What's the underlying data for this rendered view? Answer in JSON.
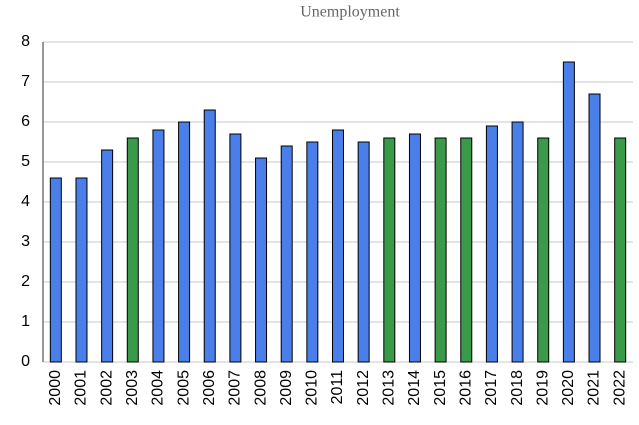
{
  "chart_data": {
    "type": "bar",
    "title": "Unemployment",
    "categories": [
      "2000",
      "2001",
      "2002",
      "2003",
      "2004",
      "2005",
      "2006",
      "2007",
      "2008",
      "2009",
      "2010",
      "2011",
      "2012",
      "2013",
      "2014",
      "2015",
      "2016",
      "2017",
      "2018",
      "2019",
      "2020",
      "2021",
      "2022"
    ],
    "values": [
      4.6,
      4.6,
      5.3,
      5.6,
      5.8,
      6.0,
      6.3,
      5.7,
      5.1,
      5.4,
      5.5,
      5.8,
      5.5,
      5.6,
      5.7,
      5.6,
      5.6,
      5.9,
      6.0,
      5.6,
      7.5,
      6.7,
      5.6
    ],
    "colors": [
      "#4a7fea",
      "#4a7fea",
      "#4a7fea",
      "#3a9a4a",
      "#4a7fea",
      "#4a7fea",
      "#4a7fea",
      "#4a7fea",
      "#4a7fea",
      "#4a7fea",
      "#4a7fea",
      "#4a7fea",
      "#4a7fea",
      "#3a9a4a",
      "#4a7fea",
      "#3a9a4a",
      "#3a9a4a",
      "#4a7fea",
      "#4a7fea",
      "#3a9a4a",
      "#4a7fea",
      "#4a7fea",
      "#3a9a4a"
    ],
    "ylim": [
      0,
      8
    ],
    "yticks": [
      0,
      1,
      2,
      3,
      4,
      5,
      6,
      7,
      8
    ],
    "grid": true
  }
}
